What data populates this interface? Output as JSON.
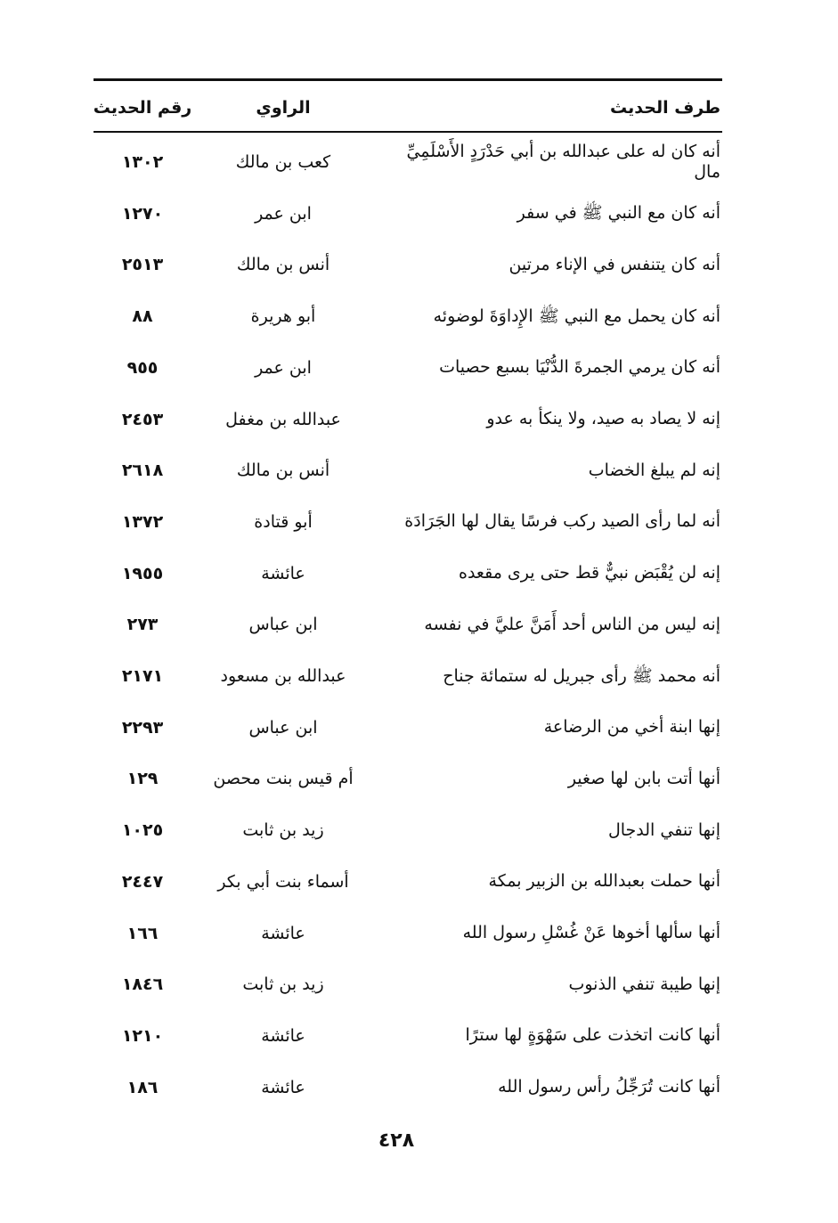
{
  "table": {
    "headers": {
      "text": "طرف الحديث",
      "narrator": "الراوي",
      "number": "رقم الحديث"
    },
    "rows": [
      {
        "text": "أنه كان له على عبدالله بن أبي حَدْرَدٍ الأَسْلَمِيِّ مال",
        "narrator": "كعب بن مالك",
        "number": "١٣٠٢"
      },
      {
        "text": "أنه كان مع النبي ﷺ في سفر",
        "narrator": "ابن عمر",
        "number": "١٢٧٠"
      },
      {
        "text": "أنه كان يتنفس في الإناء مرتين",
        "narrator": "أنس بن مالك",
        "number": "٢٥١٣"
      },
      {
        "text": "أنه كان يحمل مع النبي ﷺ الإِداوَةَ لوضوئه",
        "narrator": "أبو هريرة",
        "number": "٨٨"
      },
      {
        "text": "أنه كان يرمي الجمرةَ الدُّنْيَا بسبع حصيات",
        "narrator": "ابن عمر",
        "number": "٩٥٥"
      },
      {
        "text": "إنه لا يصاد به صيد، ولا ينكأ به عدو",
        "narrator": "عبدالله بن مغفل",
        "number": "٢٤٥٣"
      },
      {
        "text": "إنه لم يبلغ الخضاب",
        "narrator": "أنس بن مالك",
        "number": "٢٦١٨"
      },
      {
        "text": "أنه لما رأى الصيد ركب فرسًا يقال لها الجَرَادَة",
        "narrator": "أبو قتادة",
        "number": "١٣٧٢"
      },
      {
        "text": "إنه لن يُقْبَض نبيٌّ قط حتى يرى مقعده",
        "narrator": "عائشة",
        "number": "١٩٥٥"
      },
      {
        "text": "إنه ليس من الناس أحد أَمَنَّ عليَّ في نفسه",
        "narrator": "ابن عباس",
        "number": "٢٧٣"
      },
      {
        "text": "أنه محمد ﷺ رأى جبريل له ستمائة جناح",
        "narrator": "عبدالله بن مسعود",
        "number": "٢١٧١"
      },
      {
        "text": "إنها ابنة أخي من الرضاعة",
        "narrator": "ابن عباس",
        "number": "٢٢٩٣"
      },
      {
        "text": "أنها أتت بابن لها صغير",
        "narrator": "أم قيس بنت محصن",
        "number": "١٢٩"
      },
      {
        "text": "إنها تنفي الدجال",
        "narrator": "زيد بن ثابت",
        "number": "١٠٢٥"
      },
      {
        "text": "أنها حملت بعبدالله بن الزبير بمكة",
        "narrator": "أسماء بنت أبي بكر",
        "number": "٢٤٤٧"
      },
      {
        "text": "أنها سألها أخوها عَنْ غُسْلِ رسول الله",
        "narrator": "عائشة",
        "number": "١٦٦"
      },
      {
        "text": "إنها طيبة تنفي الذنوب",
        "narrator": "زيد بن ثابت",
        "number": "١٨٤٦"
      },
      {
        "text": "أنها كانت اتخذت على سَهْوَةٍ لها سترًا",
        "narrator": "عائشة",
        "number": "١٢١٠"
      },
      {
        "text": "أنها كانت تُرَجِّلُ رأس رسول الله",
        "narrator": "عائشة",
        "number": "١٨٦"
      }
    ]
  },
  "page_number": "٤٢٨"
}
